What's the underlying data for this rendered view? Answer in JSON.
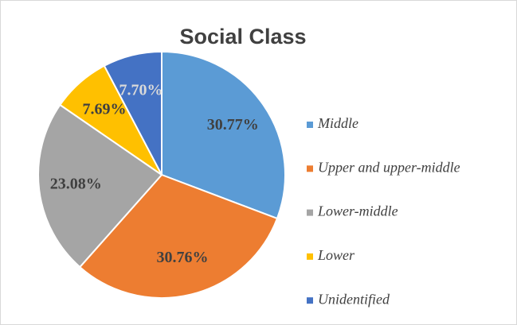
{
  "chart_data": {
    "type": "pie",
    "title": "Social Class",
    "categories": [
      "Middle",
      "Upper and upper-middle",
      "Lower-middle",
      "Lower",
      "Unidentified"
    ],
    "values": [
      30.77,
      30.76,
      23.08,
      7.69,
      7.7
    ],
    "value_labels": [
      "30.77%",
      "30.76%",
      "23.08%",
      "7.69%",
      "7.70%"
    ],
    "colors": [
      "#5b9bd5",
      "#ed7d31",
      "#a5a5a5",
      "#ffc000",
      "#4472c4"
    ],
    "legend": "right"
  }
}
